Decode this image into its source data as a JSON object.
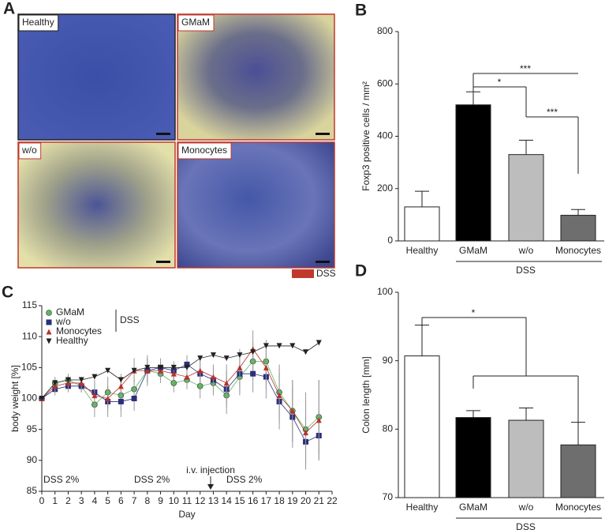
{
  "panel_a": {
    "panel": "A",
    "images": [
      "Healthy",
      "GMaM",
      "w/o",
      "Monocytes"
    ],
    "legend": "DSS",
    "legend_color": "#c0392b"
  },
  "chart_data": [
    {
      "type": "bar",
      "panel": "B",
      "ylabel": "Foxp3 positive cells / mm²",
      "categories": [
        "Healthy",
        "GMaM",
        "w/o",
        "Monocytes"
      ],
      "values": [
        130,
        520,
        330,
        98
      ],
      "errors": [
        60,
        50,
        55,
        22
      ],
      "colors": [
        "#ffffff",
        "#000000",
        "#bdbdbd",
        "#6e6e6e"
      ],
      "ylim": [
        0,
        800
      ],
      "yticks": [
        0,
        200,
        400,
        600,
        800
      ],
      "group_label": "DSS",
      "annotations": [
        "***",
        "*",
        "***"
      ]
    },
    {
      "type": "line",
      "panel": "C",
      "xlabel": "Day",
      "ylabel": "body weight [%]",
      "x": [
        0,
        1,
        2,
        3,
        4,
        5,
        6,
        7,
        8,
        9,
        10,
        11,
        12,
        13,
        14,
        15,
        16,
        17,
        18,
        19,
        20,
        21
      ],
      "xlim": [
        0,
        22
      ],
      "xticks": [
        0,
        1,
        2,
        3,
        4,
        5,
        6,
        7,
        8,
        9,
        10,
        11,
        12,
        13,
        14,
        15,
        16,
        17,
        18,
        19,
        20,
        21,
        22
      ],
      "ylim": [
        85,
        115
      ],
      "yticks": [
        85,
        90,
        95,
        100,
        105,
        110,
        115
      ],
      "series": [
        {
          "name": "GMaM",
          "color": "#5cb85c",
          "marker": "circle",
          "values": [
            100,
            102.5,
            103,
            102,
            99,
            101,
            100.5,
            101.5,
            104.5,
            104,
            102.5,
            103,
            102,
            102.5,
            100.5,
            103.5,
            106,
            106,
            101,
            98,
            95,
            97
          ],
          "errors": [
            0.5,
            1,
            1,
            1,
            2,
            2.5,
            2.5,
            2,
            2,
            1.5,
            1.5,
            1.5,
            2,
            2,
            3,
            3,
            3,
            3.5,
            4.5,
            5,
            6,
            6
          ]
        },
        {
          "name": "w/o",
          "color": "#2b2f7a",
          "marker": "square",
          "values": [
            100,
            101.5,
            102,
            102,
            101,
            99.5,
            99.5,
            100,
            104.5,
            105,
            104.5,
            105.5,
            104,
            103,
            101.5,
            104,
            104,
            103.5,
            99.5,
            97,
            93,
            94
          ],
          "errors": [
            0.5,
            1,
            1,
            1,
            2,
            2.5,
            2.5,
            2,
            2,
            1.5,
            1.5,
            1.5,
            2,
            2,
            3,
            3,
            3,
            3.5,
            4.5,
            5,
            4.5,
            4
          ]
        },
        {
          "name": "Monocytes",
          "color": "#b8322c",
          "marker": "triangle-up",
          "values": [
            100,
            102,
            102.5,
            102.5,
            100.5,
            100,
            102,
            104.5,
            104.5,
            104.5,
            104,
            103.5,
            104.5,
            103.5,
            102.5,
            105,
            108,
            105,
            100.5,
            98,
            94.5,
            96.5
          ],
          "errors": [
            0.5,
            1,
            1,
            1,
            2,
            2,
            2,
            2,
            2.5,
            1.5,
            1.5,
            1.5,
            2,
            2,
            3,
            3,
            3,
            3.5,
            4.5,
            5,
            5,
            6.5
          ]
        },
        {
          "name": "Healthy",
          "color": "#222222",
          "marker": "triangle-down",
          "values": [
            100,
            102.5,
            103,
            103,
            103.5,
            104.5,
            103,
            104.5,
            105,
            105,
            105,
            105,
            106.5,
            107,
            106.5,
            107,
            107.5,
            108.5,
            108.5,
            108.5,
            107.5,
            109
          ],
          "errors": [
            0.3,
            0.3,
            0.3,
            0.3,
            0.3,
            0.3,
            0.3,
            0.3,
            0.3,
            0.3,
            0.3,
            0.3,
            0.3,
            0.3,
            0.3,
            0.3,
            0.3,
            0.3,
            0.3,
            0.3,
            0.3,
            0.3
          ]
        }
      ],
      "legend_group_label": "DSS",
      "annotations": [
        "DSS 2%",
        "DSS 2%",
        "DSS 2%",
        "i.v. injection"
      ]
    },
    {
      "type": "bar",
      "panel": "D",
      "ylabel": "Colon length [mm]",
      "categories": [
        "Healthy",
        "GMaM",
        "w/o",
        "Monocytes"
      ],
      "values": [
        90.7,
        81.7,
        81.3,
        77.7
      ],
      "errors": [
        4.5,
        1,
        1.8,
        3.3
      ],
      "colors": [
        "#ffffff",
        "#000000",
        "#bdbdbd",
        "#6e6e6e"
      ],
      "ylim": [
        70,
        100
      ],
      "yticks": [
        70,
        80,
        90,
        100
      ],
      "group_label": "DSS",
      "annotations": [
        "*"
      ]
    }
  ]
}
